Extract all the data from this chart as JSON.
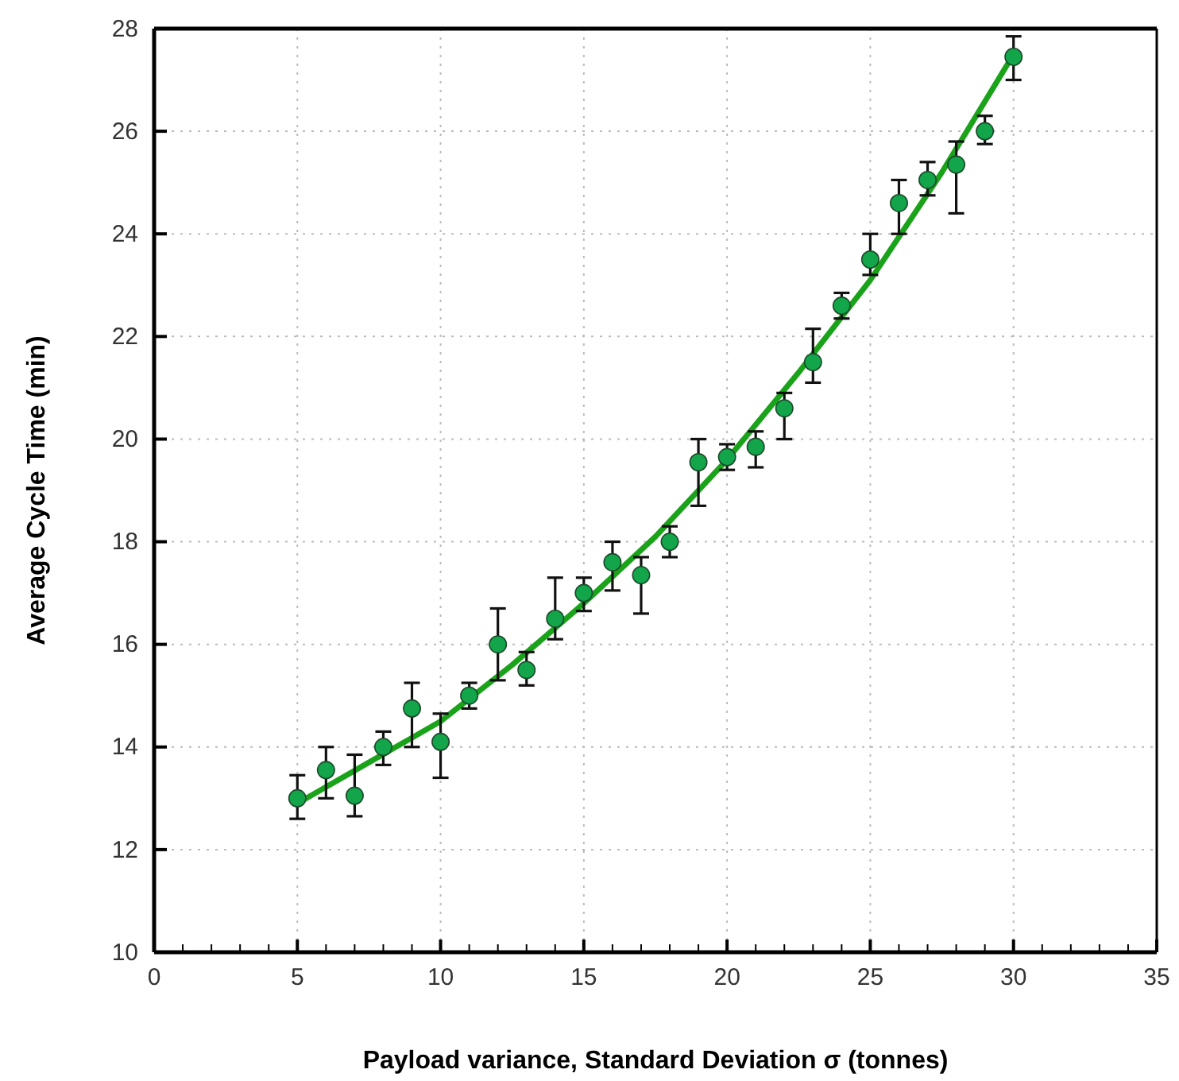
{
  "chart_data": {
    "type": "scatter",
    "xlabel": "Payload variance, Standard Deviation σ (tonnes)",
    "ylabel": "Average Cycle Time (min)",
    "xlim": [
      0,
      35
    ],
    "ylim": [
      10,
      28
    ],
    "xticks": [
      0,
      5,
      10,
      15,
      20,
      25,
      30,
      35,
      {
        "value": 1,
        "label": null
      },
      {
        "value": 2,
        "label": null
      },
      {
        "value": 3,
        "label": null
      },
      {
        "value": 4,
        "label": null
      },
      {
        "value": 6,
        "label": null
      },
      {
        "value": 7,
        "label": null
      },
      {
        "value": 8,
        "label": null
      },
      {
        "value": 9,
        "label": null
      },
      {
        "value": 11,
        "label": null
      },
      {
        "value": 12,
        "label": null
      },
      {
        "value": 13,
        "label": null
      },
      {
        "value": 14,
        "label": null
      },
      {
        "value": 16,
        "label": null
      },
      {
        "value": 17,
        "label": null
      },
      {
        "value": 18,
        "label": null
      },
      {
        "value": 19,
        "label": null
      },
      {
        "value": 21,
        "label": null
      },
      {
        "value": 22,
        "label": null
      },
      {
        "value": 23,
        "label": null
      },
      {
        "value": 24,
        "label": null
      },
      {
        "value": 26,
        "label": null
      },
      {
        "value": 27,
        "label": null
      },
      {
        "value": 28,
        "label": null
      },
      {
        "value": 29,
        "label": null
      },
      {
        "value": 31,
        "label": null
      },
      {
        "value": 32,
        "label": null
      },
      {
        "value": 33,
        "label": null
      },
      {
        "value": 34,
        "label": null
      }
    ],
    "yticks": [
      10,
      12,
      14,
      16,
      18,
      20,
      22,
      24,
      26,
      28
    ],
    "grid": true,
    "marker": "circle",
    "series": [
      {
        "type": "line",
        "color": "#1aa31a",
        "marker": "none",
        "line_style": "solid",
        "x": [
          5,
          7.5,
          10,
          12.5,
          15,
          17.5,
          20,
          22.5,
          25,
          27.5,
          30
        ],
        "values": [
          12.9,
          13.7,
          14.5,
          15.6,
          16.8,
          18.1,
          19.6,
          21.3,
          23.1,
          25.2,
          27.5
        ]
      },
      {
        "color": "#12a54a",
        "x": [
          5,
          6,
          7,
          8,
          9,
          10,
          11,
          12,
          13,
          14,
          15,
          16,
          17,
          18,
          19,
          20,
          21,
          22,
          23,
          24,
          25,
          26,
          27,
          28,
          29,
          30
        ],
        "values": [
          13.0,
          13.55,
          13.05,
          14.0,
          14.75,
          14.1,
          15.0,
          16.0,
          15.5,
          16.5,
          17.0,
          17.6,
          17.35,
          18.0,
          19.55,
          19.65,
          19.85,
          20.6,
          21.5,
          22.6,
          23.5,
          24.6,
          25.05,
          25.35,
          26.0,
          27.45
        ],
        "errors": [
          [
            12.6,
            13.45
          ],
          [
            13.0,
            14.0
          ],
          [
            12.65,
            13.85
          ],
          [
            13.65,
            14.3
          ],
          [
            14.0,
            15.25
          ],
          [
            13.4,
            14.65
          ],
          [
            14.75,
            15.25
          ],
          [
            15.3,
            16.7
          ],
          [
            15.2,
            15.85
          ],
          [
            16.1,
            17.3
          ],
          [
            16.65,
            17.3
          ],
          [
            17.05,
            18.0
          ],
          [
            16.6,
            17.7
          ],
          [
            17.7,
            18.3
          ],
          [
            18.7,
            20.0
          ],
          [
            19.4,
            19.9
          ],
          [
            19.45,
            20.15
          ],
          [
            20.0,
            20.9
          ],
          [
            21.1,
            22.15
          ],
          [
            22.35,
            22.85
          ],
          [
            23.2,
            24.0
          ],
          [
            24.0,
            25.05
          ],
          [
            24.75,
            25.4
          ],
          [
            24.4,
            25.8
          ],
          [
            25.75,
            26.3
          ],
          [
            27.0,
            27.85
          ]
        ]
      }
    ]
  }
}
